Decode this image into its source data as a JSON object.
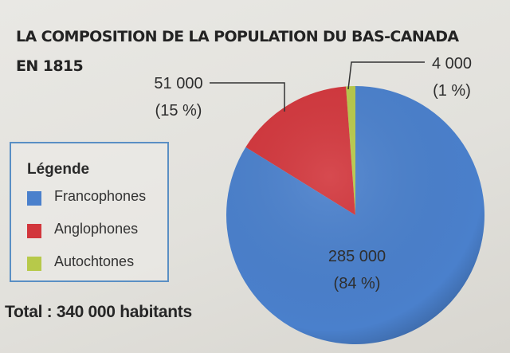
{
  "chart_data": {
    "type": "pie",
    "title_line1": "LA COMPOSITION DE LA POPULATION DU BAS-CANADA",
    "title_line2": "EN 1815",
    "categories": [
      "Francophones",
      "Anglophones",
      "Autochtones"
    ],
    "values": [
      285000,
      51000,
      4000
    ],
    "value_labels": [
      "285 000",
      "51 000",
      "4 000"
    ],
    "percent_labels": [
      "(84 %)",
      "(15 %)",
      "(1 %)"
    ],
    "colors": [
      "#4a80cc",
      "#d2363c",
      "#b7c94a"
    ],
    "legend_title": "Légende",
    "legend_position": "left",
    "total_label": "Total : 340 000 habitants"
  }
}
